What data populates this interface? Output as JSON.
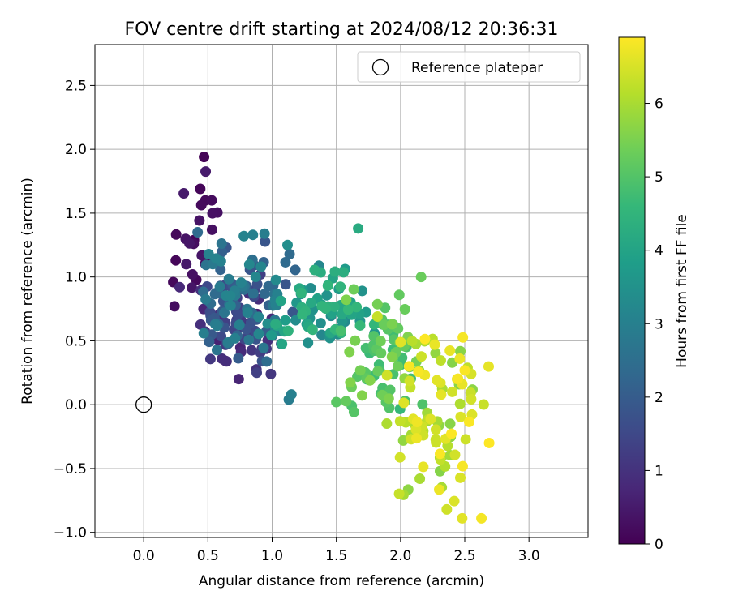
{
  "chart_data": {
    "type": "scatter",
    "title": "FOV centre drift starting at 2024/08/12 20:36:31",
    "xlabel": "Angular distance from reference (arcmin)",
    "ylabel": "Rotation from reference (arcmin)",
    "xlim": [
      -0.38,
      3.46
    ],
    "ylim": [
      -1.04,
      2.82
    ],
    "xticks": [
      0.0,
      0.5,
      1.0,
      1.5,
      2.0,
      2.5,
      3.0
    ],
    "xtick_labels": [
      "0.0",
      "0.5",
      "1.0",
      "1.5",
      "2.0",
      "2.5",
      "3.0"
    ],
    "yticks": [
      -1.0,
      -0.5,
      0.0,
      0.5,
      1.0,
      1.5,
      2.0,
      2.5
    ],
    "ytick_labels": [
      "−1.0",
      "−0.5",
      "0.0",
      "0.5",
      "1.0",
      "1.5",
      "2.0",
      "2.5"
    ],
    "grid": true,
    "legend": {
      "position": "top-right",
      "entries": [
        "Reference platepar"
      ]
    },
    "reference_point": {
      "x": 0.0,
      "y": 0.0
    },
    "colorbar": {
      "label": "Hours from first FF file",
      "range": [
        0,
        6.9
      ],
      "ticks": [
        0,
        1,
        2,
        3,
        4,
        5,
        6
      ],
      "tick_labels": [
        "0",
        "1",
        "2",
        "3",
        "4",
        "5",
        "6"
      ],
      "colormap": "viridis",
      "stops": [
        "#440154",
        "#482878",
        "#3e4a89",
        "#31688e",
        "#26828e",
        "#1f9e89",
        "#35b779",
        "#6ece58",
        "#b5de2b",
        "#fde725"
      ]
    },
    "clusters": [
      {
        "hours": [
          0.0,
          0.6
        ],
        "x": [
          0.22,
          0.62
        ],
        "y": [
          0.75,
          1.95
        ],
        "n": 18
      },
      {
        "hours": [
          0.6,
          1.8
        ],
        "x": [
          0.38,
          1.05
        ],
        "y": [
          0.18,
          1.1
        ],
        "n": 70
      },
      {
        "hours": [
          1.8,
          3.2
        ],
        "x": [
          0.35,
          1.25
        ],
        "y": [
          0.3,
          1.35
        ],
        "n": 90
      },
      {
        "hours": [
          3.2,
          4.6
        ],
        "x": [
          0.95,
          1.85
        ],
        "y": [
          0.35,
          1.15
        ],
        "n": 75
      },
      {
        "hours": [
          4.6,
          5.6
        ],
        "x": [
          1.5,
          2.25
        ],
        "y": [
          -0.15,
          1.0
        ],
        "n": 70
      },
      {
        "hours": [
          5.6,
          6.9
        ],
        "x": [
          1.85,
          2.7
        ],
        "y": [
          -0.9,
          0.7
        ],
        "n": 90
      }
    ],
    "points": [
      {
        "x": 0.47,
        "y": 1.94,
        "h": 0.05
      },
      {
        "x": 0.44,
        "y": 1.69,
        "h": 0.1
      },
      {
        "x": 0.48,
        "y": 1.6,
        "h": 0.15
      },
      {
        "x": 0.53,
        "y": 1.6,
        "h": 0.2
      },
      {
        "x": 0.25,
        "y": 1.13,
        "h": 0.1
      },
      {
        "x": 0.23,
        "y": 0.96,
        "h": 0.15
      },
      {
        "x": 0.24,
        "y": 0.77,
        "h": 0.25
      },
      {
        "x": 0.38,
        "y": 1.02,
        "h": 0.3
      },
      {
        "x": 0.28,
        "y": 0.92,
        "h": 0.8
      },
      {
        "x": 0.42,
        "y": 1.35,
        "h": 2.4
      },
      {
        "x": 0.61,
        "y": 0.36,
        "h": 0.9
      },
      {
        "x": 0.74,
        "y": 0.2,
        "h": 0.7
      },
      {
        "x": 0.88,
        "y": 0.25,
        "h": 1.3
      },
      {
        "x": 0.99,
        "y": 0.24,
        "h": 1.1
      },
      {
        "x": 0.85,
        "y": 1.33,
        "h": 3.0
      },
      {
        "x": 0.78,
        "y": 1.32,
        "h": 3.1
      },
      {
        "x": 1.12,
        "y": 1.25,
        "h": 3.4
      },
      {
        "x": 1.13,
        "y": 0.04,
        "h": 2.9
      },
      {
        "x": 1.15,
        "y": 0.08,
        "h": 3.0
      },
      {
        "x": 1.67,
        "y": 1.38,
        "h": 4.2
      },
      {
        "x": 1.99,
        "y": 0.86,
        "h": 5.2
      },
      {
        "x": 2.16,
        "y": 1.0,
        "h": 5.3
      },
      {
        "x": 1.5,
        "y": 0.02,
        "h": 5.1
      },
      {
        "x": 1.62,
        "y": -0.01,
        "h": 4.9
      },
      {
        "x": 2.15,
        "y": -0.58,
        "h": 6.0
      },
      {
        "x": 2.36,
        "y": -0.82,
        "h": 6.4
      },
      {
        "x": 2.48,
        "y": -0.89,
        "h": 6.6
      },
      {
        "x": 2.63,
        "y": -0.89,
        "h": 6.8
      },
      {
        "x": 2.69,
        "y": -0.3,
        "h": 6.9
      },
      {
        "x": 2.55,
        "y": 0.24,
        "h": 6.5
      },
      {
        "x": 2.44,
        "y": 0.2,
        "h": 6.7
      },
      {
        "x": 1.82,
        "y": 0.69,
        "h": 6.3
      },
      {
        "x": 2.0,
        "y": 0.49,
        "h": 6.6
      }
    ]
  },
  "legend_label": "Reference platepar"
}
